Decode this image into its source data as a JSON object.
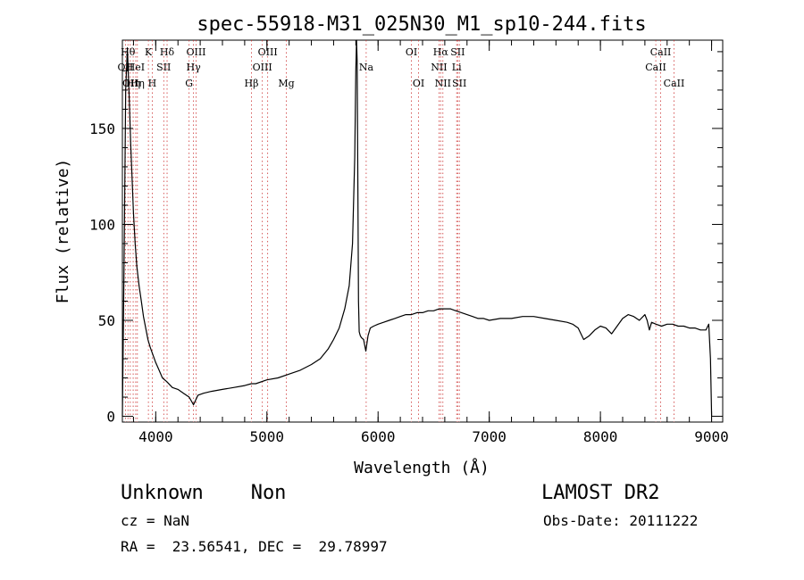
{
  "chart_data": {
    "type": "line",
    "title": "spec-55918-M31_025N30_M1_sp10-244.fits",
    "xlabel": "Wavelength (Å)",
    "ylabel": "Flux (relative)",
    "xlim": [
      3700,
      9100
    ],
    "ylim": [
      -3,
      196
    ],
    "xticks": [
      4000,
      5000,
      6000,
      7000,
      8000,
      9000
    ],
    "xtick_labels": [
      "4000",
      "5000",
      "6000",
      "7000",
      "8000",
      "9000"
    ],
    "yticks": [
      0,
      50,
      100,
      150
    ],
    "ytick_labels": [
      "0",
      "50",
      "100",
      "150"
    ],
    "grid": false,
    "series": [
      {
        "x": [
          3700,
          3715,
          3730,
          3745,
          3760,
          3775,
          3790,
          3800,
          3815,
          3830,
          3850,
          3870,
          3890,
          3910,
          3930,
          3950,
          3975,
          4000,
          4030,
          4060,
          4100,
          4150,
          4200,
          4250,
          4300,
          4340,
          4380,
          4430,
          4500,
          4600,
          4700,
          4800,
          4860,
          4900,
          5000,
          5100,
          5200,
          5300,
          5400,
          5480,
          5550,
          5600,
          5650,
          5700,
          5740,
          5770,
          5790,
          5800,
          5806,
          5812,
          5818,
          5824,
          5830,
          5840,
          5850,
          5870,
          5890,
          5910,
          5930,
          5960,
          6000,
          6050,
          6100,
          6150,
          6200,
          6250,
          6300,
          6350,
          6400,
          6450,
          6500,
          6550,
          6600,
          6650,
          6700,
          6750,
          6800,
          6850,
          6900,
          6950,
          7000,
          7100,
          7200,
          7300,
          7400,
          7500,
          7600,
          7700,
          7750,
          7800,
          7850,
          7900,
          7950,
          8000,
          8050,
          8100,
          8150,
          8200,
          8250,
          8300,
          8350,
          8400,
          8420,
          8440,
          8460,
          8500,
          8550,
          8600,
          8650,
          8700,
          8750,
          8800,
          8850,
          8900,
          8950,
          8975,
          8990,
          9000
        ],
        "y": [
          0,
          80,
          170,
          192,
          168,
          142,
          120,
          106,
          90,
          78,
          68,
          60,
          52,
          46,
          40,
          36,
          32,
          28,
          24,
          20,
          18,
          15,
          14,
          12,
          10,
          6,
          11,
          12,
          13,
          14,
          15,
          16,
          17,
          17,
          19,
          20,
          22,
          24,
          27,
          30,
          35,
          40,
          46,
          56,
          68,
          90,
          135,
          180,
          196,
          185,
          120,
          60,
          44,
          42,
          41,
          40,
          34,
          42,
          46,
          47,
          48,
          49,
          50,
          51,
          52,
          53,
          53,
          54,
          54,
          55,
          55,
          56,
          56,
          56,
          55,
          54,
          53,
          52,
          51,
          51,
          50,
          51,
          51,
          52,
          52,
          51,
          50,
          49,
          48,
          46,
          40,
          42,
          45,
          47,
          46,
          43,
          47,
          51,
          53,
          52,
          50,
          53,
          50,
          45,
          49,
          48,
          47,
          48,
          48,
          47,
          47,
          46,
          46,
          45,
          45,
          48,
          30,
          0
        ]
      }
    ],
    "line_labels": [
      {
        "wl": 3727,
        "text": "OII",
        "row": 2
      },
      {
        "wl": 3750,
        "text": "Hθ",
        "row": 1
      },
      {
        "wl": 3771,
        "text": "OII",
        "row": 3
      },
      {
        "wl": 3797,
        "text": "Hη",
        "row": 3
      },
      {
        "wl": 3820,
        "text": "HeI",
        "row": 2
      },
      {
        "wl": 3835,
        "text": "Hη",
        "row": 3
      },
      {
        "wl": 3934,
        "text": "K",
        "row": 1
      },
      {
        "wl": 3969,
        "text": "H",
        "row": 3
      },
      {
        "wl": 4072,
        "text": "SII",
        "row": 2
      },
      {
        "wl": 4102,
        "text": "Hδ",
        "row": 1
      },
      {
        "wl": 4300,
        "text": "G",
        "row": 3
      },
      {
        "wl": 4340,
        "text": "Hγ",
        "row": 2
      },
      {
        "wl": 4363,
        "text": "OIII",
        "row": 1
      },
      {
        "wl": 4861,
        "text": "Hβ",
        "row": 3
      },
      {
        "wl": 4959,
        "text": "OIII",
        "row": 2
      },
      {
        "wl": 5007,
        "text": "OIII",
        "row": 1
      },
      {
        "wl": 5175,
        "text": "Mg",
        "row": 3
      },
      {
        "wl": 5893,
        "text": "Na",
        "row": 2
      },
      {
        "wl": 6300,
        "text": "OI",
        "row": 1
      },
      {
        "wl": 6364,
        "text": "OI",
        "row": 3
      },
      {
        "wl": 6548,
        "text": "NII",
        "row": 2
      },
      {
        "wl": 6563,
        "text": "Hα",
        "row": 1
      },
      {
        "wl": 6583,
        "text": "NII",
        "row": 3
      },
      {
        "wl": 6707,
        "text": "Li",
        "row": 2
      },
      {
        "wl": 6716,
        "text": "SII",
        "row": 1
      },
      {
        "wl": 6731,
        "text": "SII",
        "row": 3
      },
      {
        "wl": 8498,
        "text": "CaII",
        "row": 2
      },
      {
        "wl": 8542,
        "text": "CaII",
        "row": 1
      },
      {
        "wl": 8662,
        "text": "CaII",
        "row": 3
      }
    ]
  },
  "info": {
    "class": "Unknown    Non",
    "survey": "LAMOST DR2",
    "cz": "cz = NaN",
    "obs_date": "Obs-Date: 20111222",
    "radec": "RA =  23.56541, DEC =  29.78997"
  }
}
